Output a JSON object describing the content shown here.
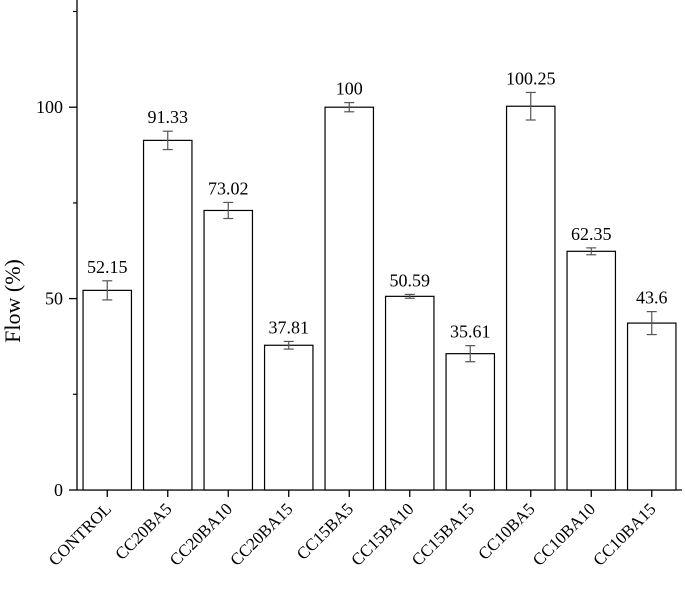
{
  "chart_data": {
    "type": "bar",
    "title": "",
    "xlabel": "",
    "ylabel": "Flow (%)",
    "ylim": [
      0,
      128
    ],
    "yticks": [
      0,
      50,
      100
    ],
    "grid": false,
    "legend": "none",
    "categories": [
      "CONTROL",
      "CC20BA5",
      "CC20BA10",
      "CC20BA15",
      "CC15BA5",
      "CC15BA10",
      "CC15BA15",
      "CC10BA5",
      "CC10BA10",
      "CC10BA15"
    ],
    "values": [
      52.15,
      91.33,
      73.02,
      37.81,
      100,
      50.59,
      35.61,
      100.25,
      62.35,
      43.6
    ],
    "errors": [
      2.5,
      2.4,
      2.1,
      1.0,
      1.2,
      0.5,
      2.1,
      3.6,
      0.9,
      3.0
    ],
    "data_labels": [
      "52.15",
      "91.33",
      "73.02",
      "37.81",
      "100",
      "50.59",
      "35.61",
      "100.25",
      "62.35",
      "43.6"
    ],
    "colors": {
      "bar_fill": "#ffffff",
      "bar_stroke": "#000000",
      "axis": "#000000",
      "error_bar": "#555555"
    }
  }
}
